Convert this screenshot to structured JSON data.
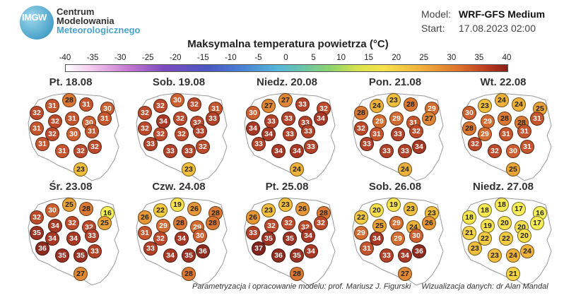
{
  "header": {
    "logo_line1": "IMGW",
    "org_line1": "Centrum",
    "org_line2": "Modelowania",
    "org_line3": "Meteorologicznego",
    "model_label": "Model:",
    "model_value": "WRF-GFS Medium",
    "start_label": "Start:",
    "start_value": "17.08.2023 02:00"
  },
  "title": "Maksymalna temperatura powietrza (°C)",
  "scale_ticks": [
    "-40",
    "-35",
    "-30",
    "-25",
    "-20",
    "-15",
    "-10",
    "-5",
    "0",
    "5",
    "10",
    "15",
    "20",
    "25",
    "30",
    "35",
    "40"
  ],
  "panels": [
    {
      "label": "Pt. 18.08",
      "values": [
        28,
        31,
        31,
        30,
        32,
        32,
        31,
        30,
        31,
        31,
        32,
        30,
        31,
        31,
        31,
        32,
        32,
        23
      ]
    },
    {
      "label": "Sob. 19.08",
      "values": [
        30,
        32,
        32,
        31,
        32,
        34,
        32,
        32,
        33,
        32,
        32,
        32,
        33,
        33,
        33,
        33,
        32,
        23
      ]
    },
    {
      "label": "Niedz. 20.08",
      "values": [
        27,
        27,
        33,
        32,
        30,
        33,
        33,
        33,
        34,
        34,
        34,
        33,
        33,
        33,
        34,
        34,
        33,
        24
      ]
    },
    {
      "label": "Pon. 21.08",
      "values": [
        23,
        24,
        28,
        29,
        28,
        29,
        29,
        31,
        27,
        32,
        31,
        33,
        32,
        33,
        33,
        33,
        34,
        24
      ]
    },
    {
      "label": "Wt. 22.08",
      "values": [
        24,
        23,
        24,
        25,
        30,
        29,
        28,
        28,
        31,
        28,
        29,
        31,
        31,
        32,
        32,
        30,
        31,
        25
      ]
    },
    {
      "label": "Śr. 23.08",
      "values": [
        25,
        30,
        28,
        16,
        32,
        34,
        32,
        32,
        25,
        35,
        34,
        34,
        33,
        36,
        35,
        35,
        33,
        27
      ]
    },
    {
      "label": "Czw. 24.08",
      "values": [
        19,
        22,
        26,
        28,
        26,
        29,
        28,
        29,
        28,
        31,
        32,
        34,
        30,
        33,
        34,
        35,
        36,
        28
      ]
    },
    {
      "label": "Pt. 25.08",
      "values": [
        23,
        23,
        26,
        28,
        26,
        32,
        32,
        32,
        32,
        33,
        35,
        35,
        34,
        37,
        36,
        35,
        34,
        28
      ]
    },
    {
      "label": "Sob. 26.08",
      "values": [
        19,
        20,
        23,
        23,
        22,
        25,
        29,
        24,
        26,
        29,
        34,
        29,
        30,
        31,
        33,
        34,
        36,
        27
      ]
    },
    {
      "label": "Niedz. 27.08",
      "values": [
        18,
        18,
        17,
        16,
        18,
        19,
        20,
        20,
        17,
        21,
        22,
        22,
        20,
        23,
        23,
        24,
        24,
        21
      ]
    }
  ],
  "credits": {
    "left": "Parametryzacja i opracowanie modelu: prof. Mariusz J. Figurski",
    "right": "Wizualizacja danych: dr Alan Mandal"
  }
}
